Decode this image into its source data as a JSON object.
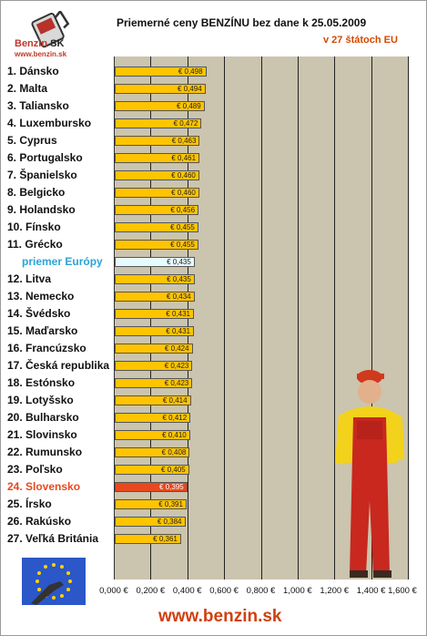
{
  "header": {
    "logo_word": "Benzin",
    "logo_word_suffix": "SK",
    "logo_url": "www.benzin.sk",
    "title": "Priemerné ceny BENZÍNU bez dane k 25.05.2009",
    "subtitle": "v 27 štátoch EU"
  },
  "footer": {
    "url": "www.benzin.sk"
  },
  "colors": {
    "bar": "#ffc400",
    "average_bar": "#e6fbff",
    "highlight_bar": "#e8481e",
    "plot_bg": "#cbc4ae"
  },
  "icons": [
    "benzin-logo-icon",
    "eu-flag-fuel-nozzle-icon",
    "gas-station-worker-figure"
  ],
  "chart_data": {
    "type": "bar",
    "orientation": "horizontal",
    "title": "Priemerné ceny BENZÍNU bez dane k 25.05.2009",
    "subtitle": "v 27 štátoch EU",
    "xlim": [
      0,
      1.6
    ],
    "xticks": [
      "0,000 €",
      "0,200 €",
      "0,400 €",
      "0,600 €",
      "0,800 €",
      "1,000 €",
      "1,200 €",
      "1,400 €",
      "1,600 €"
    ],
    "grid": true,
    "categories": [
      "1. Dánsko",
      "2. Malta",
      "3. Taliansko",
      "4. Luxembursko",
      "5. Cyprus",
      "6. Portugalsko",
      "7. Španielsko",
      "8. Belgicko",
      "9. Holandsko",
      "10. Fínsko",
      "11. Grécko",
      "priemer Európy",
      "12. Litva",
      "13. Nemecko",
      "14. Švédsko",
      "15. Maďarsko",
      "16. Francúzsko",
      "17. Česká republika",
      "18. Estónsko",
      "19. Lotyšsko",
      "20. Bulharsko",
      "21. Slovinsko",
      "22. Rumunsko",
      "23. Poľsko",
      "24. Slovensko",
      "25. Írsko",
      "26. Rakúsko",
      "27. Veľká Británia"
    ],
    "values": [
      0.498,
      0.494,
      0.489,
      0.472,
      0.463,
      0.461,
      0.46,
      0.46,
      0.456,
      0.455,
      0.455,
      0.435,
      0.435,
      0.434,
      0.431,
      0.431,
      0.424,
      0.423,
      0.423,
      0.414,
      0.412,
      0.41,
      0.408,
      0.405,
      0.395,
      0.391,
      0.384,
      0.361
    ],
    "value_labels": [
      "€ 0,498",
      "€ 0,494",
      "€ 0,489",
      "€ 0,472",
      "€ 0,463",
      "€ 0,461",
      "€ 0,460",
      "€ 0,460",
      "€ 0,456",
      "€ 0,455",
      "€ 0,455",
      "€ 0,435",
      "€ 0,435",
      "€ 0,434",
      "€ 0,431",
      "€ 0,431",
      "€ 0,424",
      "€ 0,423",
      "€ 0,423",
      "€ 0,414",
      "€ 0,412",
      "€ 0,410",
      "€ 0,408",
      "€ 0,405",
      "€ 0,395",
      "€ 0,391",
      "€ 0,384",
      "€ 0,361"
    ],
    "highlight_index": 24,
    "average_index": 11
  }
}
